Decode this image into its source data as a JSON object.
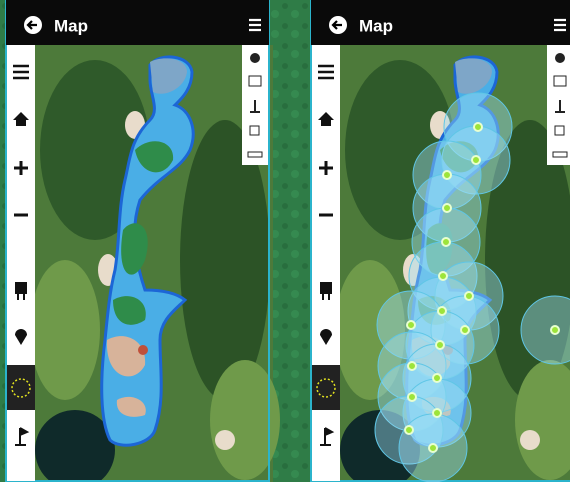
{
  "screens": [
    {
      "title": "Map"
    },
    {
      "title": "Map"
    }
  ]
}
